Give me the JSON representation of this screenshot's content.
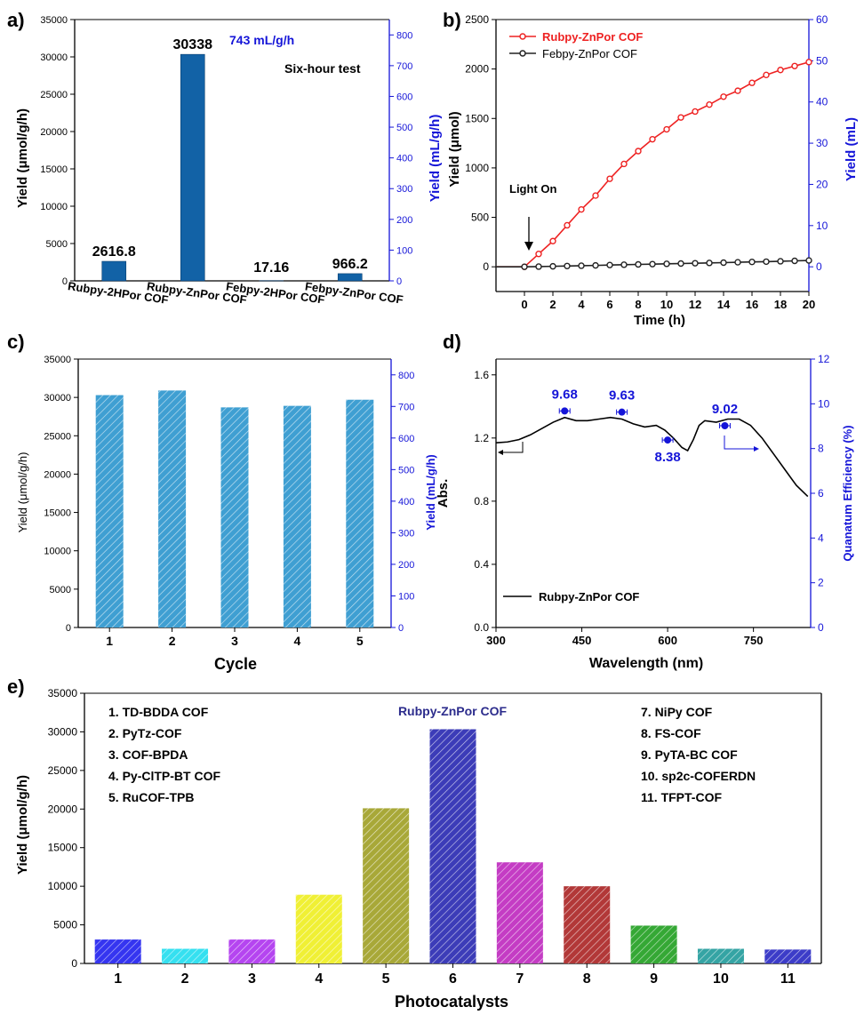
{
  "panel_labels": [
    "a)",
    "b)",
    "c)",
    "d)",
    "e)"
  ],
  "colors": {
    "blue_axis": "#1515d8",
    "bar_a": "#1262a6",
    "bar_c": "#3f9fd2",
    "red_line": "#ee2222",
    "black_line": "#222222",
    "hatch_line": "#ffffff"
  },
  "chart_data": [
    {
      "panel": "a)",
      "type": "bar",
      "categories": [
        "Rubpy-2HPor COF",
        "Rubpy-ZnPor COF",
        "Febpy-2HPor COF",
        "Febpy-ZnPor COF"
      ],
      "values": [
        2616.8,
        30338,
        17.16,
        966.2
      ],
      "value_labels": [
        "2616.8",
        "30338",
        "17.16",
        "966.2"
      ],
      "ylabel": "Yield (μmol/g/h)",
      "ylim": [
        0,
        35000
      ],
      "yticks": [
        0,
        5000,
        10000,
        15000,
        20000,
        25000,
        30000,
        35000
      ],
      "y2label": "Yield (mL/g/h)",
      "y2lim": [
        0,
        850
      ],
      "y2ticks": [
        0,
        100,
        200,
        300,
        400,
        500,
        600,
        700,
        800
      ],
      "annotations": [
        "743 mL/g/h",
        "Six-hour test"
      ]
    },
    {
      "panel": "b)",
      "type": "line",
      "xlabel": "Time (h)",
      "xlim": [
        -2,
        20
      ],
      "xticks": [
        0,
        2,
        4,
        6,
        8,
        10,
        12,
        14,
        16,
        18,
        20
      ],
      "ylabel": "Yield (μmol)",
      "ylim": [
        -250,
        2500
      ],
      "yticks": [
        0,
        500,
        1000,
        1500,
        2000,
        2500
      ],
      "y2label": "Yield (mL)",
      "y2lim": [
        -6,
        60
      ],
      "y2ticks": [
        0,
        10,
        20,
        30,
        40,
        50,
        60
      ],
      "legend_position": "top-left",
      "annotations": [
        "Light On"
      ],
      "series": [
        {
          "name": "Rubpy-ZnPor COF",
          "x": [
            -2,
            0,
            1,
            2,
            3,
            4,
            5,
            6,
            7,
            8,
            9,
            10,
            11,
            12,
            13,
            14,
            15,
            16,
            17,
            18,
            19,
            20
          ],
          "values": [
            0,
            0,
            130,
            260,
            420,
            580,
            720,
            890,
            1040,
            1170,
            1290,
            1390,
            1510,
            1570,
            1640,
            1720,
            1780,
            1860,
            1940,
            1990,
            2030,
            2070
          ]
        },
        {
          "name": "Febpy-ZnPor COF",
          "x": [
            -2,
            0,
            1,
            2,
            3,
            4,
            5,
            6,
            7,
            8,
            9,
            10,
            11,
            12,
            13,
            14,
            15,
            16,
            17,
            18,
            19,
            20
          ],
          "values": [
            0,
            0,
            2,
            5,
            8,
            11,
            14,
            18,
            21,
            24,
            27,
            30,
            33,
            36,
            39,
            42,
            46,
            49,
            52,
            56,
            60,
            64
          ]
        }
      ]
    },
    {
      "panel": "c)",
      "type": "bar",
      "xlabel": "Cycle",
      "categories": [
        "1",
        "2",
        "3",
        "4",
        "5"
      ],
      "values": [
        30300,
        30900,
        28700,
        28900,
        29700
      ],
      "ylabel": "Yield (μmol/g/h)",
      "ylim": [
        0,
        35000
      ],
      "yticks": [
        0,
        5000,
        10000,
        15000,
        20000,
        25000,
        30000,
        35000
      ],
      "y2label": "Yield (mL/g/h)",
      "y2lim": [
        0,
        850
      ],
      "y2ticks": [
        0,
        100,
        200,
        300,
        400,
        500,
        600,
        700,
        800
      ]
    },
    {
      "panel": "d)",
      "type": "line",
      "xlabel": "Wavelength (nm)",
      "xlim": [
        300,
        850
      ],
      "xticks": [
        300,
        450,
        600,
        750
      ],
      "ylabel": "Abs.",
      "ylim": [
        0,
        1.7
      ],
      "yticks": [
        0.0,
        0.4,
        0.8,
        1.2,
        1.6
      ],
      "y2label": "Quanatum Efficiency (%)",
      "y2lim": [
        0,
        12
      ],
      "y2ticks": [
        0,
        2,
        4,
        6,
        8,
        10,
        12
      ],
      "legend_position": "bottom-left",
      "series": [
        {
          "name": "Rubpy-ZnPor COF",
          "x": [
            300,
            320,
            340,
            360,
            380,
            400,
            420,
            440,
            460,
            480,
            500,
            520,
            540,
            560,
            580,
            595,
            610,
            625,
            635,
            645,
            655,
            665,
            685,
            705,
            725,
            745,
            765,
            785,
            805,
            825,
            845
          ],
          "values": [
            1.17,
            1.175,
            1.19,
            1.22,
            1.26,
            1.3,
            1.33,
            1.31,
            1.31,
            1.32,
            1.33,
            1.32,
            1.29,
            1.27,
            1.28,
            1.25,
            1.2,
            1.14,
            1.12,
            1.19,
            1.28,
            1.31,
            1.3,
            1.32,
            1.32,
            1.28,
            1.2,
            1.1,
            1.0,
            0.9,
            0.83
          ]
        }
      ],
      "qe_points": {
        "x": [
          420,
          520,
          600,
          700
        ],
        "values": [
          9.68,
          9.63,
          8.38,
          9.02
        ],
        "labels": [
          "9.68",
          "9.63",
          "8.38",
          "9.02"
        ]
      }
    },
    {
      "panel": "e)",
      "type": "bar",
      "xlabel": "Photocatalysts",
      "categories": [
        "1",
        "2",
        "3",
        "4",
        "5",
        "6",
        "7",
        "8",
        "9",
        "10",
        "11"
      ],
      "values": [
        3100,
        1900,
        3100,
        8900,
        20100,
        30338,
        13100,
        10000,
        4900,
        1900,
        1800
      ],
      "bar_colors": [
        "#3535f0",
        "#35e0f0",
        "#b545f0",
        "#f0f035",
        "#a8a838",
        "#3c3cb8",
        "#c43cc4",
        "#b23838",
        "#35a835",
        "#35a4a4",
        "#3c3cc8"
      ],
      "ylabel": "Yield (μmol/g/h)",
      "ylim": [
        0,
        35000
      ],
      "yticks": [
        0,
        5000,
        10000,
        15000,
        20000,
        25000,
        30000,
        35000
      ],
      "highlight_label": "Rubpy-ZnPor COF",
      "key_left": [
        "1. TD-BDDA COF",
        "2. PyTz-COF",
        "3. COF-BPDA",
        "4. Py-ClTP-BT COF",
        "5. RuCOF-TPB"
      ],
      "key_right": [
        "7. NiPy COF",
        "8. FS-COF",
        "9. PyTA-BC COF",
        "10. sp2c-COFERDN",
        "11. TFPT-COF"
      ]
    }
  ]
}
